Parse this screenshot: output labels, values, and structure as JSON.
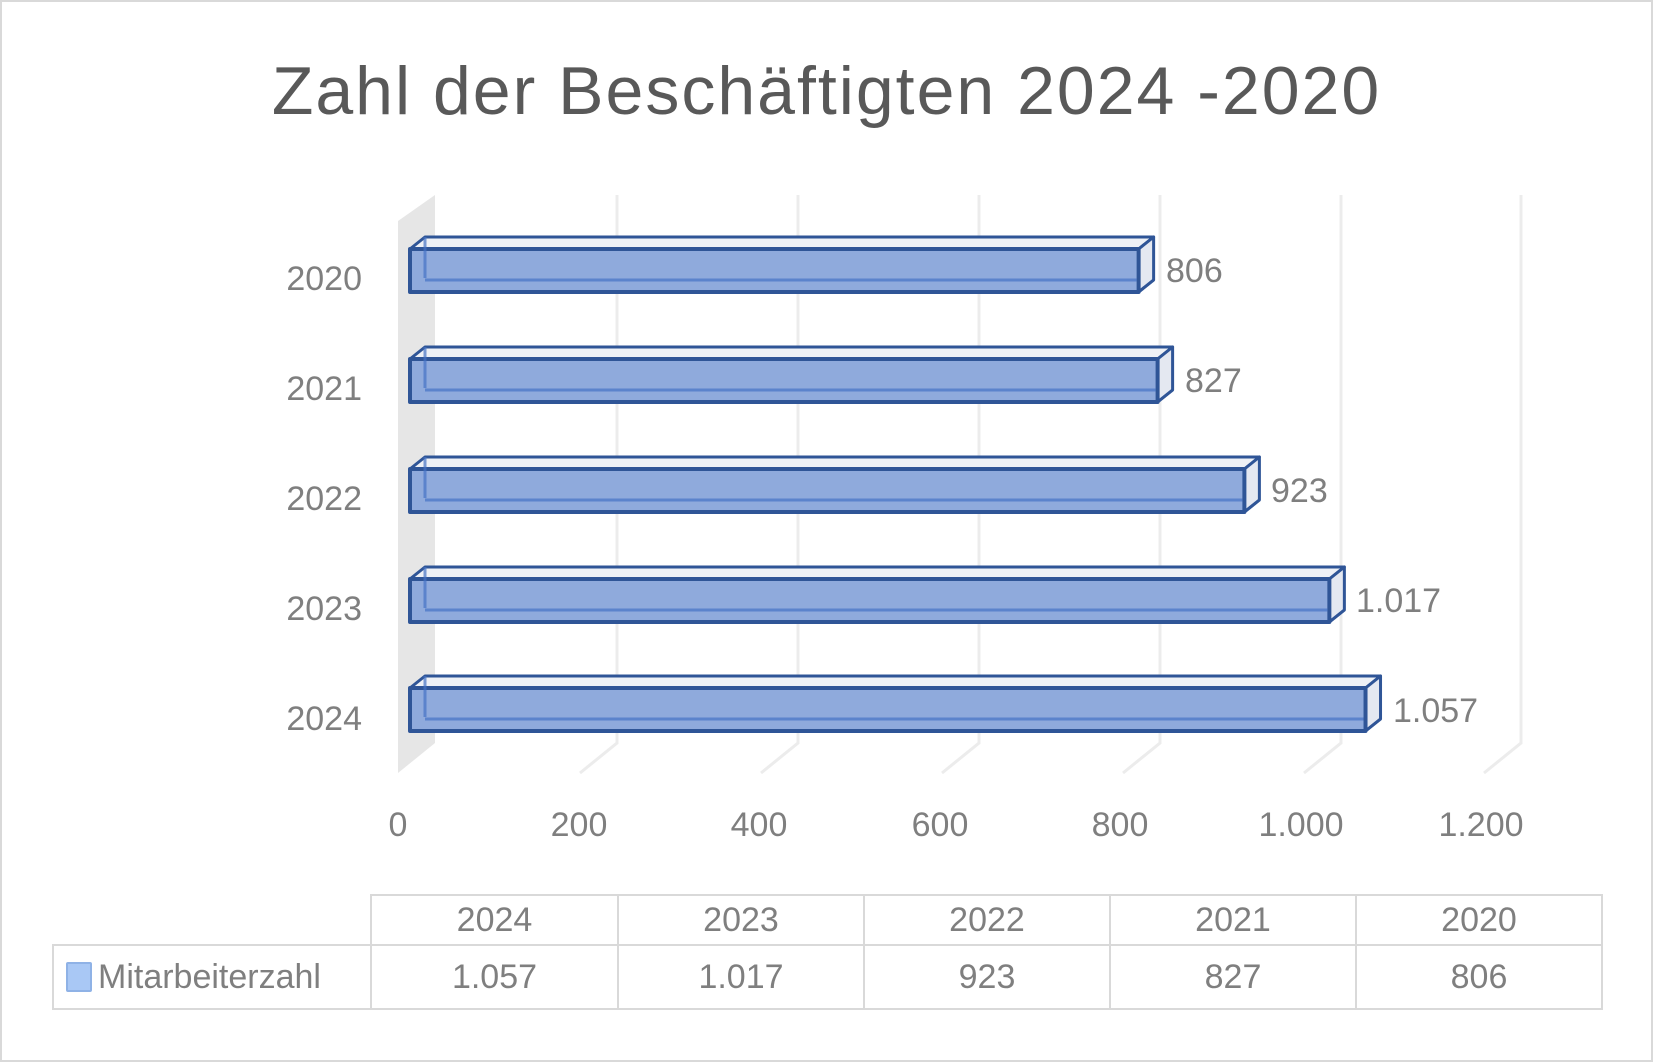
{
  "chart_data": {
    "type": "bar",
    "orientation": "horizontal",
    "style": "3d-clustered-bar",
    "title": "Zahl der Beschäftigten 2024 -2020",
    "categories": [
      "2020",
      "2021",
      "2022",
      "2023",
      "2024"
    ],
    "series": [
      {
        "name": "Mitarbeiterzahl",
        "values": [
          806,
          827,
          923,
          1017,
          1057
        ],
        "color": "#8faadc"
      }
    ],
    "data_labels": [
      "806",
      "827",
      "923",
      "1.017",
      "1.057"
    ],
    "xlabel": "",
    "ylabel": "",
    "xlim": [
      0,
      1200
    ],
    "x_ticks": [
      "0",
      "200",
      "400",
      "600",
      "800",
      "1.000",
      "1.200"
    ],
    "grid": true,
    "legend_position": "data-table"
  },
  "title": "Zahl der Beschäftigten 2024 -2020",
  "axis": {
    "categories": [
      "2020",
      "2021",
      "2022",
      "2023",
      "2024"
    ],
    "ticks": [
      "0",
      "200",
      "400",
      "600",
      "800",
      "1.000",
      "1.200"
    ]
  },
  "bars": [
    {
      "year": "2020",
      "label": "806"
    },
    {
      "year": "2021",
      "label": "827"
    },
    {
      "year": "2022",
      "label": "923"
    },
    {
      "year": "2023",
      "label": "1.017"
    },
    {
      "year": "2024",
      "label": "1.057"
    }
  ],
  "data_table": {
    "headers": [
      "2024",
      "2023",
      "2022",
      "2021",
      "2020"
    ],
    "series_name": "Mitarbeiterzahl",
    "values": [
      "1.057",
      "1.017",
      "923",
      "827",
      "806"
    ]
  },
  "colors": {
    "bar_fill": "#8faadc",
    "bar_edge": "#2f5597",
    "bar_top": "#eef1f6",
    "wall": "#e6e6e6",
    "grid": "#eeeeee",
    "text": "#7f7f7f",
    "title": "#595959"
  }
}
